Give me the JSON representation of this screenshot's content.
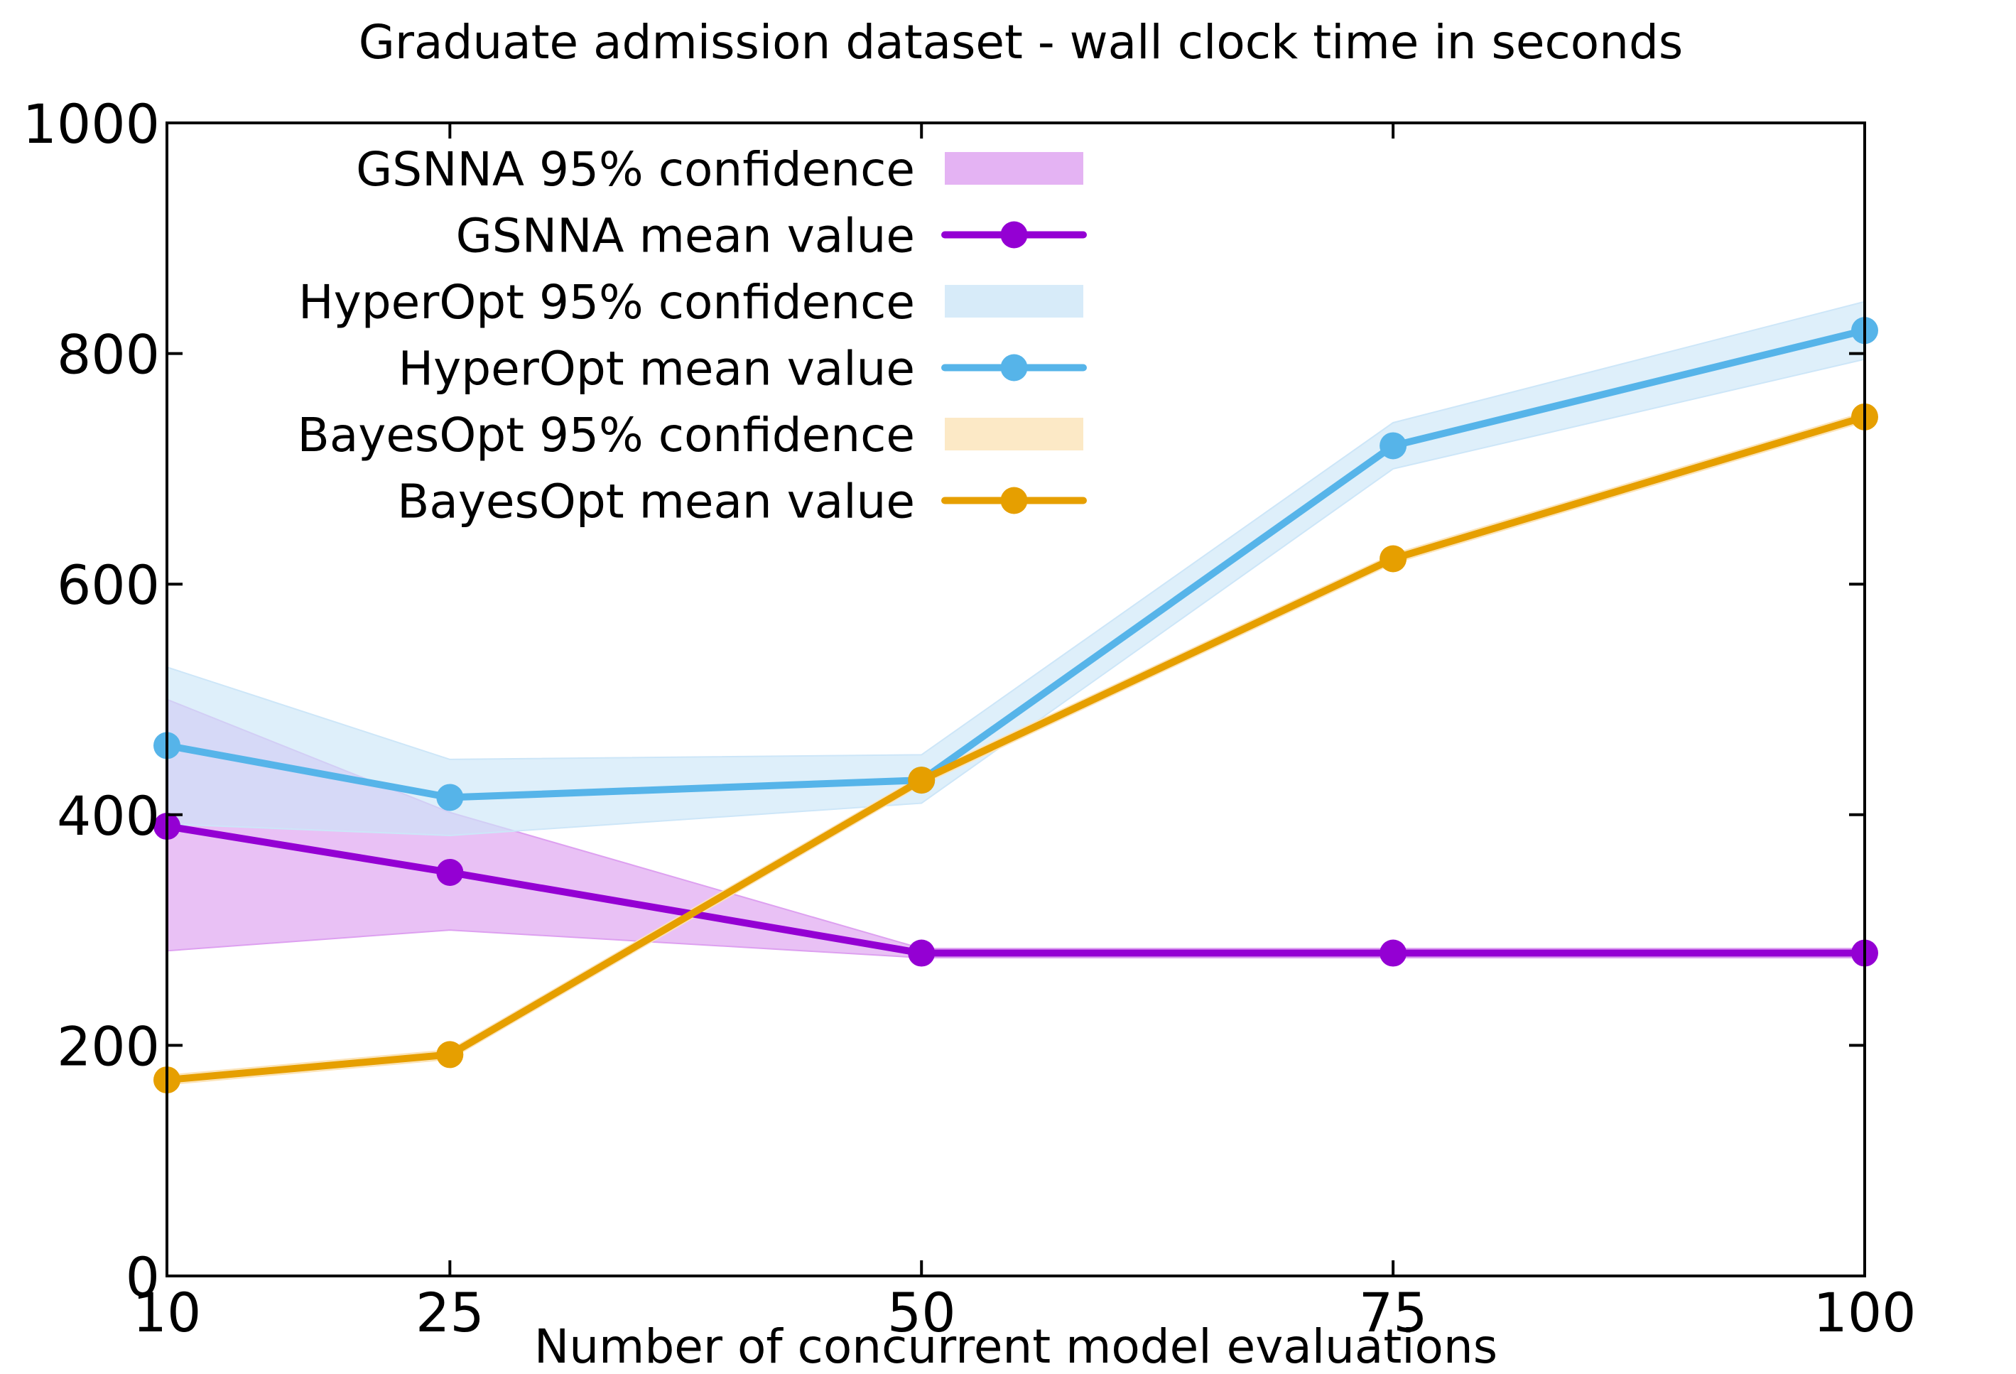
{
  "chart_data": {
    "type": "line",
    "title": "Graduate admission dataset - wall clock time in seconds",
    "xlabel": "Number of concurrent model evaluations",
    "ylabel": "",
    "x": [
      10,
      25,
      50,
      75,
      100
    ],
    "xticks": [
      "10",
      "25",
      "50",
      "75",
      "100"
    ],
    "yticks": [
      "0",
      "200",
      "400",
      "600",
      "800",
      "1000"
    ],
    "xlim": [
      10,
      100
    ],
    "ylim": [
      0,
      1000
    ],
    "grid": false,
    "legend_position": "top-left",
    "series": [
      {
        "name": "GSNNA mean value",
        "band_name": "GSNNA 95% confidence",
        "color": "#9400d3",
        "band_color": "#dda0f0",
        "values": [
          390,
          350,
          280,
          280,
          280
        ],
        "lower": [
          282,
          300,
          276,
          276,
          276
        ],
        "upper": [
          500,
          402,
          284,
          284,
          284
        ]
      },
      {
        "name": "HyperOpt mean value",
        "band_name": "HyperOpt 95% confidence",
        "color": "#56b4e9",
        "band_color": "#cde6f8",
        "values": [
          460,
          415,
          430,
          720,
          820
        ],
        "lower": [
          392,
          382,
          410,
          700,
          795
        ],
        "upper": [
          528,
          448,
          452,
          740,
          845
        ]
      },
      {
        "name": "BayesOpt mean value",
        "band_name": "BayesOpt 95% confidence",
        "color": "#e69f00",
        "band_color": "#fbe3b8",
        "values": [
          170,
          192,
          430,
          622,
          745
        ],
        "lower": [
          166,
          188,
          426,
          618,
          741
        ],
        "upper": [
          174,
          196,
          434,
          626,
          749
        ]
      }
    ]
  }
}
